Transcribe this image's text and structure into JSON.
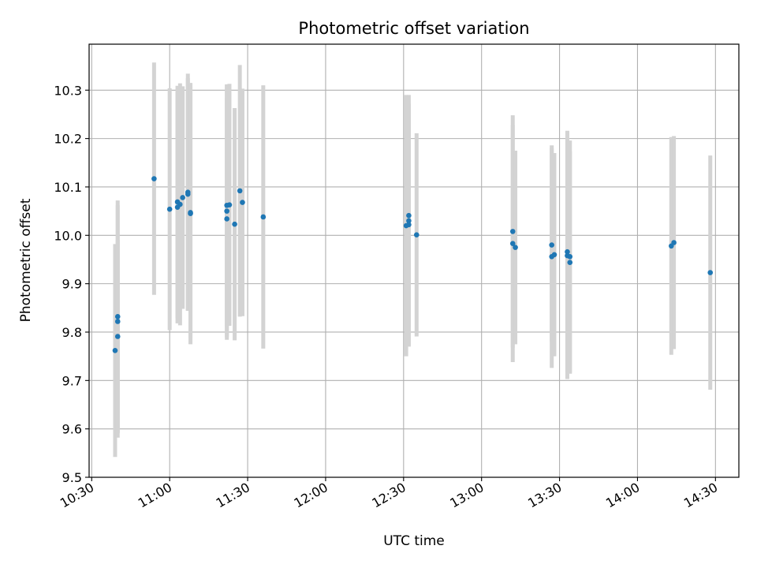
{
  "chart_data": {
    "type": "scatter",
    "title": "Photometric offset variation",
    "xlabel": "UTC time",
    "ylabel": "Photometric offset",
    "x_ticks": [
      "10:30",
      "11:00",
      "11:30",
      "12:00",
      "12:30",
      "13:00",
      "13:30",
      "14:00",
      "14:30"
    ],
    "y_ticks": [
      "9.5",
      "9.6",
      "9.7",
      "9.8",
      "9.9",
      "10.0",
      "10.1",
      "10.2",
      "10.3"
    ],
    "xlim": [
      "10:29",
      "14:39"
    ],
    "ylim": [
      9.5,
      10.395
    ],
    "grid": true,
    "colors": {
      "points": "#1f77b4",
      "errorbars": "#d3d3d3",
      "grid": "#b0b0b0"
    },
    "points": [
      {
        "time": "10:39",
        "y": 9.762,
        "err": 0.22
      },
      {
        "time": "10:40",
        "y": 9.791,
        "err": 0.2
      },
      {
        "time": "10:40",
        "y": 9.822,
        "err": 0.24
      },
      {
        "time": "10:40",
        "y": 9.832,
        "err": 0.24
      },
      {
        "time": "10:54",
        "y": 10.117,
        "err": 0.24
      },
      {
        "time": "11:00",
        "y": 10.054,
        "err": 0.25
      },
      {
        "time": "11:03",
        "y": 10.058,
        "err": 0.24
      },
      {
        "time": "11:03",
        "y": 10.069,
        "err": 0.24
      },
      {
        "time": "11:04",
        "y": 10.064,
        "err": 0.25
      },
      {
        "time": "11:05",
        "y": 10.078,
        "err": 0.23
      },
      {
        "time": "11:07",
        "y": 10.085,
        "err": 0.24
      },
      {
        "time": "11:07",
        "y": 10.089,
        "err": 0.245
      },
      {
        "time": "11:08",
        "y": 10.045,
        "err": 0.27
      },
      {
        "time": "11:08",
        "y": 10.047,
        "err": 0.26
      },
      {
        "time": "11:22",
        "y": 10.034,
        "err": 0.25
      },
      {
        "time": "11:22",
        "y": 10.05,
        "err": 0.26
      },
      {
        "time": "11:22",
        "y": 10.062,
        "err": 0.25
      },
      {
        "time": "11:23",
        "y": 10.063,
        "err": 0.25
      },
      {
        "time": "11:25",
        "y": 10.023,
        "err": 0.24
      },
      {
        "time": "11:27",
        "y": 10.092,
        "err": 0.26
      },
      {
        "time": "11:28",
        "y": 10.068,
        "err": 0.235
      },
      {
        "time": "11:36",
        "y": 10.038,
        "err": 0.272
      },
      {
        "time": "12:31",
        "y": 10.02,
        "err": 0.27
      },
      {
        "time": "12:32",
        "y": 10.03,
        "err": 0.26
      },
      {
        "time": "12:32",
        "y": 10.022,
        "err": 0.25
      },
      {
        "time": "12:32",
        "y": 10.041,
        "err": 0.23
      },
      {
        "time": "12:35",
        "y": 10.001,
        "err": 0.21
      },
      {
        "time": "13:12",
        "y": 10.008,
        "err": 0.24
      },
      {
        "time": "13:12",
        "y": 9.983,
        "err": 0.245
      },
      {
        "time": "13:13",
        "y": 9.975,
        "err": 0.2
      },
      {
        "time": "13:27",
        "y": 9.956,
        "err": 0.23
      },
      {
        "time": "13:27",
        "y": 9.98,
        "err": 0.2
      },
      {
        "time": "13:28",
        "y": 9.96,
        "err": 0.21
      },
      {
        "time": "13:33",
        "y": 9.966,
        "err": 0.25
      },
      {
        "time": "13:33",
        "y": 9.958,
        "err": 0.255
      },
      {
        "time": "13:34",
        "y": 9.944,
        "err": 0.23
      },
      {
        "time": "13:34",
        "y": 9.956,
        "err": 0.24
      },
      {
        "time": "14:13",
        "y": 9.978,
        "err": 0.225
      },
      {
        "time": "14:14",
        "y": 9.985,
        "err": 0.22
      },
      {
        "time": "14:28",
        "y": 9.923,
        "err": 0.242
      }
    ]
  }
}
